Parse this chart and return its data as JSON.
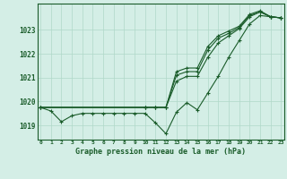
{
  "title": "Graphe pression niveau de la mer (hPa)",
  "background_color": "#d4eee6",
  "grid_color": "#b0d8c8",
  "line_color": "#1a5c2a",
  "ylim": [
    1018.4,
    1024.1
  ],
  "yticks": [
    1019,
    1020,
    1021,
    1022,
    1023
  ],
  "xlim": [
    -0.3,
    23.3
  ],
  "line1_x": [
    0,
    1,
    2,
    3,
    4,
    5,
    6,
    7,
    8,
    9,
    10,
    11,
    12,
    13,
    14,
    15,
    16,
    17,
    18,
    19,
    20,
    21,
    22,
    23
  ],
  "line1_y": [
    1019.75,
    1019.6,
    1019.15,
    1019.4,
    1019.5,
    1019.5,
    1019.5,
    1019.5,
    1019.5,
    1019.5,
    1019.5,
    1019.1,
    1018.65,
    1019.55,
    1019.95,
    1019.65,
    1020.35,
    1021.05,
    1021.85,
    1022.55,
    1023.25,
    1023.6,
    1023.55,
    1023.5
  ],
  "line2_x": [
    0,
    10,
    11,
    12,
    13,
    14,
    15,
    16,
    17,
    18,
    19,
    20,
    21,
    22,
    23
  ],
  "line2_y": [
    1019.75,
    1019.75,
    1019.75,
    1019.75,
    1020.85,
    1021.05,
    1021.05,
    1021.85,
    1022.45,
    1022.75,
    1023.05,
    1023.55,
    1023.75,
    1023.55,
    1023.5
  ],
  "line3_x": [
    0,
    10,
    11,
    12,
    13,
    14,
    15,
    16,
    17,
    18,
    19,
    20,
    21,
    22,
    23
  ],
  "line3_y": [
    1019.75,
    1019.75,
    1019.75,
    1019.75,
    1021.1,
    1021.25,
    1021.25,
    1022.15,
    1022.65,
    1022.85,
    1023.1,
    1023.6,
    1023.75,
    1023.55,
    1023.5
  ],
  "line4_x": [
    0,
    10,
    11,
    12,
    13,
    14,
    15,
    16,
    17,
    18,
    19,
    20,
    21,
    22,
    23
  ],
  "line4_y": [
    1019.75,
    1019.75,
    1019.75,
    1019.75,
    1021.25,
    1021.4,
    1021.4,
    1022.3,
    1022.75,
    1022.95,
    1023.15,
    1023.65,
    1023.8,
    1023.55,
    1023.5
  ]
}
